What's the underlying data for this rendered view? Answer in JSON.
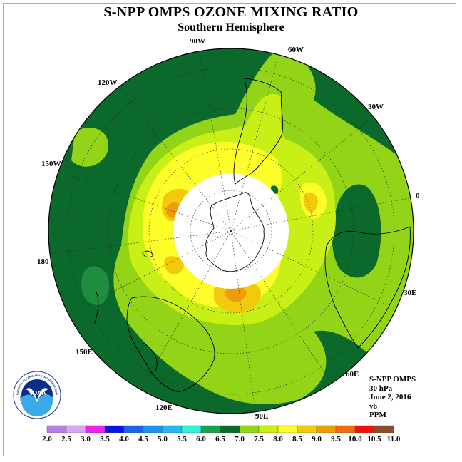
{
  "header": {
    "title": "S-NPP OMPS OZONE MIXING RATIO",
    "subtitle": "Southern Hemisphere"
  },
  "map": {
    "longitude_labels": [
      "90W",
      "60W",
      "30W",
      "0",
      "30E",
      "60E",
      "90E",
      "120E",
      "150E",
      "180",
      "150W",
      "120W"
    ],
    "colors": {
      "dark_green": "#0b6a2b",
      "mid_green": "#1e8e3e",
      "light_green": "#93d318",
      "yellow_green": "#c8f016",
      "yellow": "#ffff26",
      "gold": "#f2c90d",
      "orange": "#ee9c0a",
      "polar_cap": "#ffffff",
      "coast": "#000000"
    }
  },
  "info": {
    "instrument": "S-NPP OMPS",
    "level": "30 hPa",
    "date": "June 2, 2016",
    "version": "v6",
    "units": "PPM"
  },
  "logo": {
    "text": "NOAA",
    "ring_text": "NATIONAL OCEANIC AND ATMOSPHERIC ADMINISTRATION",
    "ring_text_bottom": "U.S. DEPARTMENT OF COMMERCE"
  },
  "color_scale": {
    "labels": [
      "2.0",
      "2.5",
      "3.0",
      "3.5",
      "4.0",
      "4.5",
      "5.0",
      "5.5",
      "6.0",
      "6.5",
      "7.0",
      "7.5",
      "8.0",
      "8.5",
      "9.0",
      "9.5",
      "10.0",
      "10.5",
      "11.0"
    ],
    "colors": [
      "#b37fe6",
      "#d7a8f2",
      "#f21fec",
      "#0a16e0",
      "#1b63e8",
      "#1f92f0",
      "#28b5f0",
      "#2ef5d8",
      "#16a14a",
      "#0b6a2b",
      "#93d318",
      "#c8f016",
      "#fdfd2a",
      "#f2c90d",
      "#ee9c0a",
      "#f26c0f",
      "#ee1508",
      "#8c4a2e"
    ]
  }
}
